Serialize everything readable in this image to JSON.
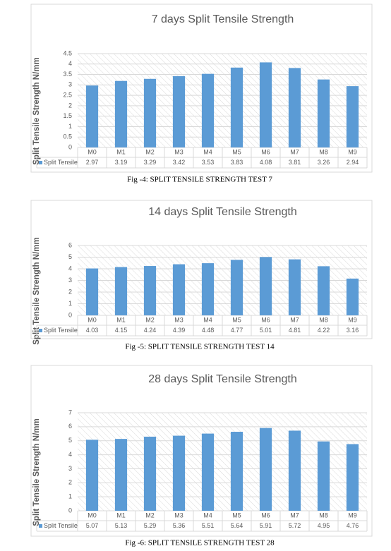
{
  "chart_data": [
    {
      "type": "bar",
      "title": "7 days Split Tensile  Strength",
      "y_label": "Split Tensile  Strength N/mm",
      "categories": [
        "M0",
        "M1",
        "M2",
        "M3",
        "M4",
        "M5",
        "M6",
        "M7",
        "M8",
        "M9"
      ],
      "series": [
        {
          "name": "Split Tensile",
          "color": "#5b9bd5",
          "values": [
            2.97,
            3.19,
            3.29,
            3.42,
            3.53,
            3.83,
            4.08,
            3.81,
            3.26,
            2.94
          ]
        }
      ],
      "ylim": [
        0,
        4.5
      ],
      "yticks": [
        0,
        0.5,
        1,
        1.5,
        2,
        2.5,
        3,
        3.5,
        4,
        4.5
      ],
      "grid": true,
      "caption": "Fig -4:   SPLIT TENSILE STRENGTH TEST 7"
    },
    {
      "type": "bar",
      "title": "14 days Split Tensile  Strength",
      "y_label": "Split Tensile  Strength N/mm",
      "categories": [
        "M0",
        "M1",
        "M2",
        "M3",
        "M4",
        "M5",
        "M6",
        "M7",
        "M8",
        "M9"
      ],
      "series": [
        {
          "name": "Split Tensile",
          "color": "#5b9bd5",
          "values": [
            4.03,
            4.15,
            4.24,
            4.39,
            4.48,
            4.77,
            5.01,
            4.81,
            4.22,
            3.16
          ]
        }
      ],
      "ylim": [
        0,
        6
      ],
      "yticks": [
        0,
        1,
        2,
        3,
        4,
        5,
        6
      ],
      "grid": true,
      "caption": "Fig -5:   SPLIT TENSILE STRENGTH TEST 14"
    },
    {
      "type": "bar",
      "title": "28 days Split Tensile  Strength",
      "y_label": "Split Tensile  Strength N/mm",
      "categories": [
        "M0",
        "M1",
        "M2",
        "M3",
        "M4",
        "M5",
        "M6",
        "M7",
        "M8",
        "M9"
      ],
      "series": [
        {
          "name": "Split Tensile",
          "color": "#5b9bd5",
          "values": [
            5.07,
            5.13,
            5.29,
            5.36,
            5.51,
            5.64,
            5.91,
            5.72,
            4.95,
            4.76
          ]
        }
      ],
      "ylim": [
        0,
        7
      ],
      "yticks": [
        0,
        1,
        2,
        3,
        4,
        5,
        6,
        7
      ],
      "grid": true,
      "caption": "Fig -6:   SPLIT TENSILE STRENGTH TEST 28"
    }
  ]
}
